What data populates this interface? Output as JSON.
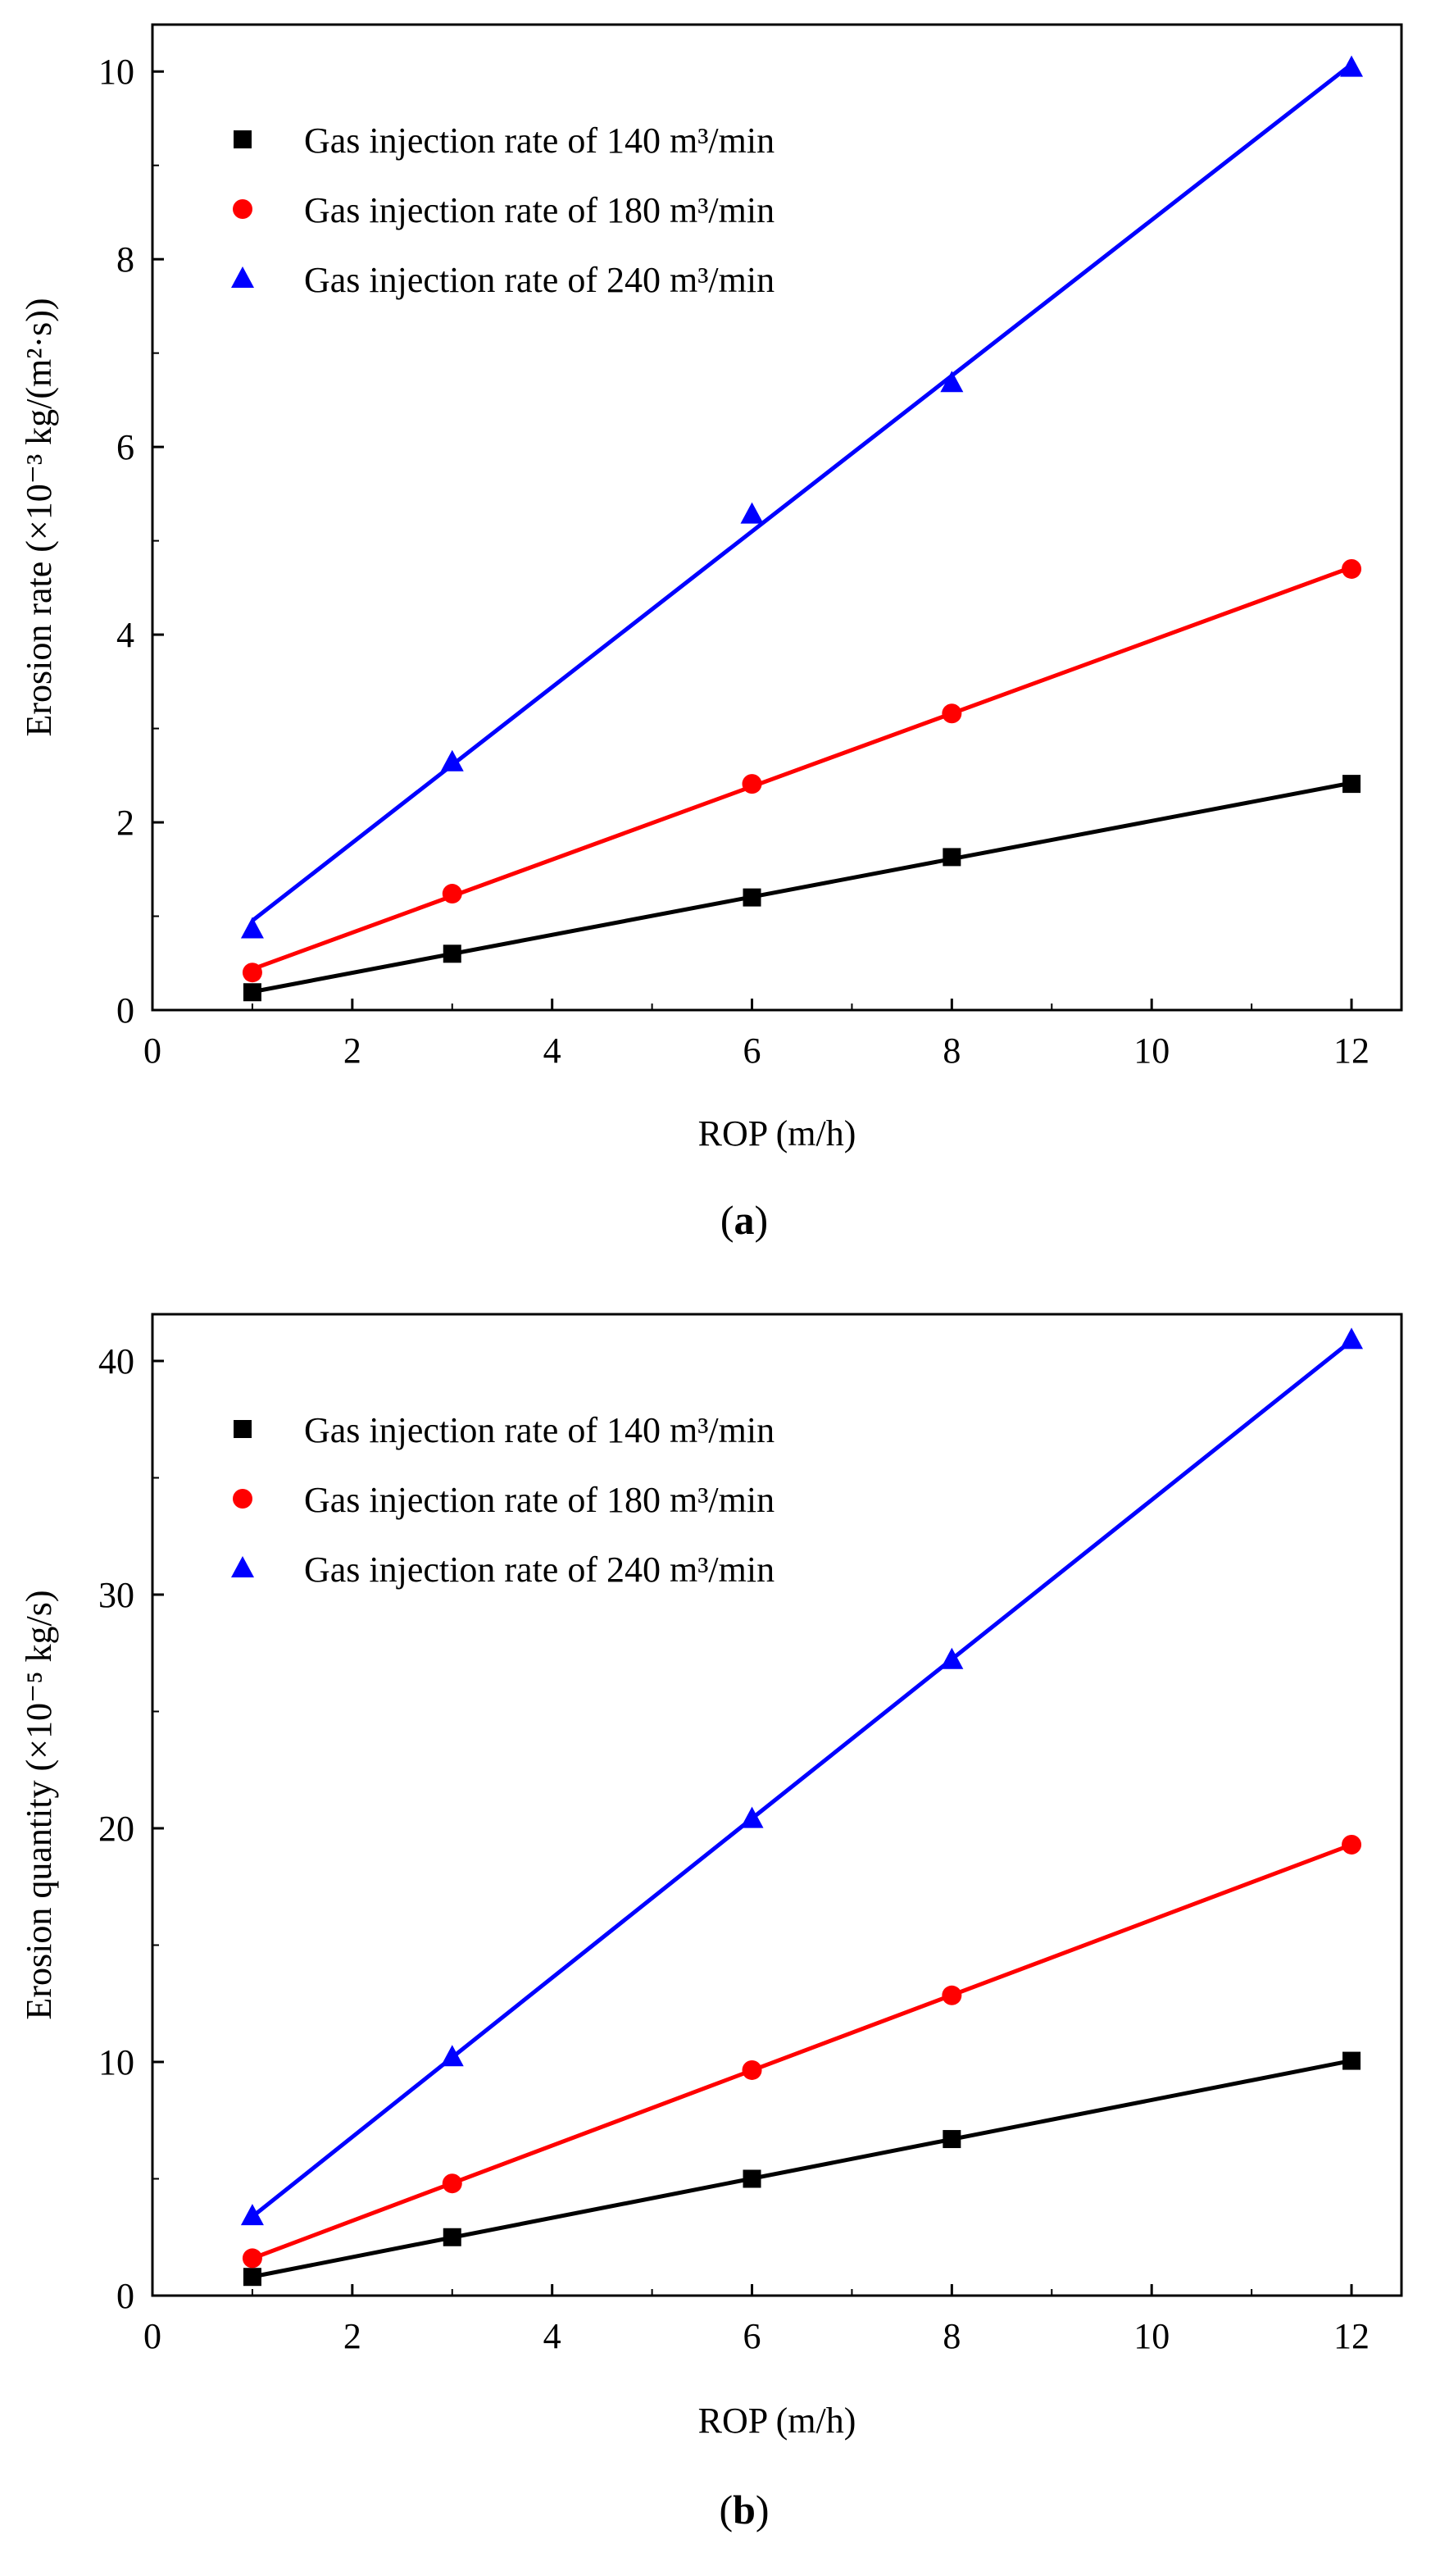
{
  "chart_data": [
    {
      "type": "line",
      "panel": "a",
      "panel_label": "(a)",
      "title": "",
      "xlabel": "ROP (m/h)",
      "ylabel": "Erosion rate (×10⁻³ kg/(m²·s))",
      "xlim": [
        0,
        12.5
      ],
      "ylim": [
        0,
        10.5
      ],
      "xticks": [
        0,
        2,
        4,
        6,
        8,
        10,
        12
      ],
      "yticks": [
        0,
        2,
        4,
        6,
        8,
        10
      ],
      "grid": false,
      "legend_position": "top-left",
      "x": [
        1,
        3,
        6,
        8,
        12
      ],
      "series": [
        {
          "name": "Gas injection rate of 140 m³/min",
          "marker": "square",
          "color": "#000000",
          "values": [
            0.19,
            0.6,
            1.2,
            1.63,
            2.41
          ]
        },
        {
          "name": "Gas injection rate of 180 m³/min",
          "marker": "circle",
          "color": "#ff0000",
          "values": [
            0.4,
            1.24,
            2.41,
            3.16,
            4.7
          ]
        },
        {
          "name": "Gas injection rate of 240 m³/min",
          "marker": "triangle",
          "color": "#0000ff",
          "values": [
            0.86,
            2.64,
            5.28,
            6.68,
            10.04
          ]
        }
      ]
    },
    {
      "type": "line",
      "panel": "b",
      "panel_label": "(b)",
      "title": "",
      "xlabel": "ROP (m/h)",
      "ylabel": "Erosion quantity (×10⁻⁵ kg/s)",
      "xlim": [
        0,
        12.5
      ],
      "ylim": [
        0,
        42
      ],
      "xticks": [
        0,
        2,
        4,
        6,
        8,
        10,
        12
      ],
      "yticks": [
        0,
        10,
        20,
        30,
        40
      ],
      "grid": false,
      "legend_position": "top-left",
      "x": [
        1,
        3,
        6,
        8,
        12
      ],
      "series": [
        {
          "name": "Gas injection rate of 140 m³/min",
          "marker": "square",
          "color": "#000000",
          "values": [
            0.8,
            2.5,
            5.0,
            6.7,
            10.05
          ]
        },
        {
          "name": "Gas injection rate of 180 m³/min",
          "marker": "circle",
          "color": "#ff0000",
          "values": [
            1.6,
            4.8,
            9.65,
            12.85,
            19.3
          ]
        },
        {
          "name": "Gas injection rate of 240 m³/min",
          "marker": "triangle",
          "color": "#0000ff",
          "values": [
            3.4,
            10.2,
            20.4,
            27.2,
            40.9
          ]
        }
      ]
    }
  ]
}
